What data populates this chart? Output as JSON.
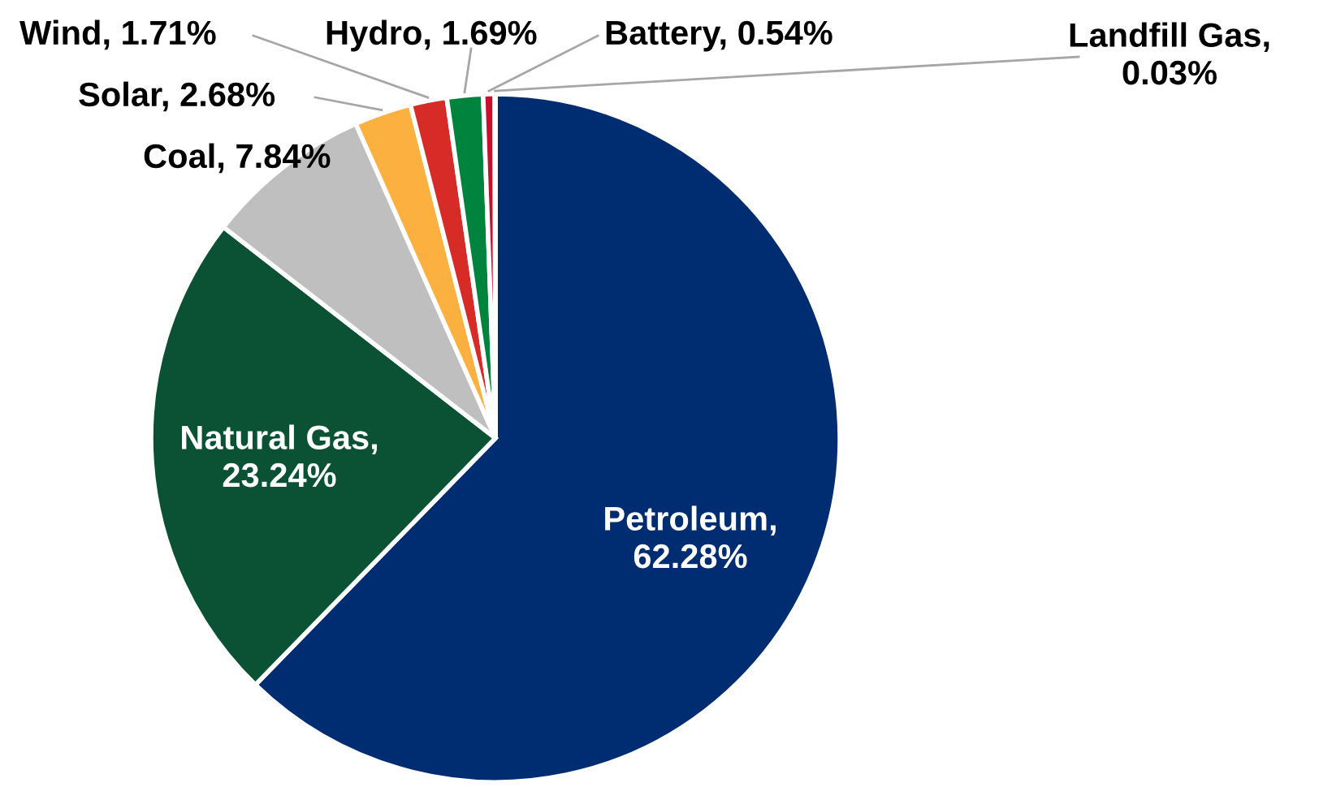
{
  "chart_data": {
    "type": "pie",
    "categories": [
      "Petroleum",
      "Natural Gas",
      "Coal",
      "Solar",
      "Wind",
      "Hydro",
      "Battery",
      "Landfill Gas"
    ],
    "values": [
      62.28,
      23.24,
      7.84,
      2.68,
      1.71,
      1.69,
      0.54,
      0.03
    ],
    "value_labels": [
      ",\n62.28%",
      ",\n23.24%",
      ", 7.84%",
      ", 2.68%",
      ", 1.71%",
      ", 1.69%",
      ", 0.54%",
      ",\n0.03%"
    ],
    "colors": [
      "#002d72",
      "#0b5234",
      "#bfbfbf",
      "#fbb040",
      "#d72b27",
      "#00843d",
      "#c8102e",
      "#e07000"
    ]
  }
}
